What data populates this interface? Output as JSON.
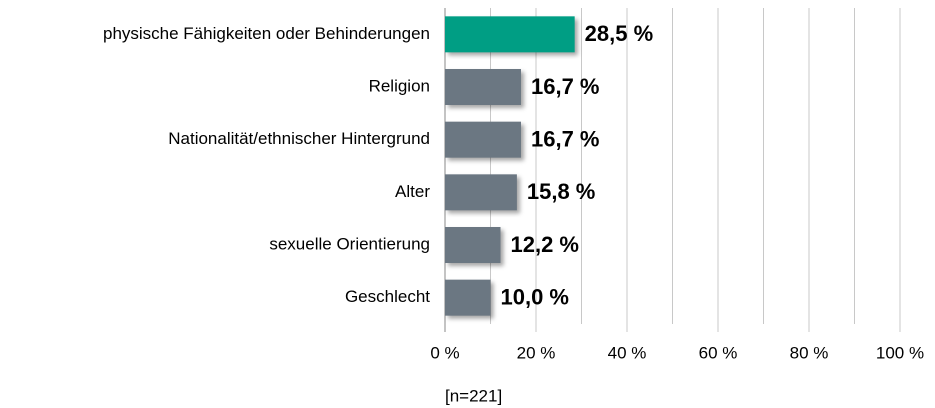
{
  "chart_data": {
    "type": "barh",
    "categories": [
      "physische Fähigkeiten oder Behinderungen",
      "Religion",
      "Nationalität/ethnischer Hintergrund",
      "Alter",
      "sexuelle Orientierung",
      "Geschlecht"
    ],
    "values": [
      28.5,
      16.7,
      16.7,
      15.8,
      12.2,
      10.0
    ],
    "value_labels": [
      "28,5 %",
      "16,7 %",
      "16,7 %",
      "15,8 %",
      "12,2 %",
      "10,0 %"
    ],
    "colors": [
      "#009e84",
      "#6b7782",
      "#6b7782",
      "#6b7782",
      "#6b7782",
      "#6b7782"
    ],
    "xlim": [
      0,
      100
    ],
    "xticks": [
      {
        "value": 0,
        "label": "0 %"
      },
      {
        "value": 20,
        "label": "20 %"
      },
      {
        "value": 40,
        "label": "40 %"
      },
      {
        "value": 60,
        "label": "60 %"
      },
      {
        "value": 80,
        "label": "80 %"
      },
      {
        "value": 100,
        "label": "100 %"
      }
    ],
    "grid": true,
    "note": "[n=221]"
  }
}
